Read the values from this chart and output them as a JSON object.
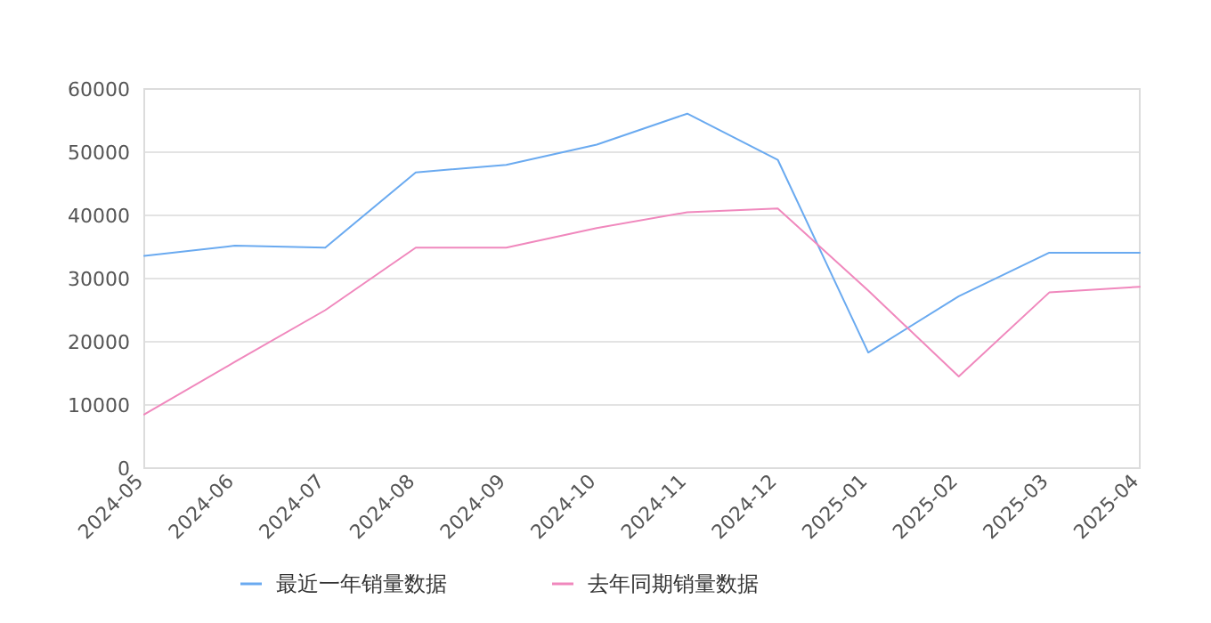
{
  "chart_data": {
    "type": "line",
    "categories": [
      "2024-05",
      "2024-06",
      "2024-07",
      "2024-08",
      "2024-09",
      "2024-10",
      "2024-11",
      "2024-12",
      "2025-01",
      "2025-02",
      "2025-03",
      "2025-04"
    ],
    "series": [
      {
        "name": "最近一年销量数据",
        "color": "#6aaaf0",
        "values": [
          33600,
          35200,
          34900,
          46800,
          48000,
          51200,
          56100,
          48800,
          18300,
          27200,
          34100,
          34100
        ]
      },
      {
        "name": "去年同期销量数据",
        "color": "#f088bd",
        "values": [
          8500,
          16800,
          25000,
          34900,
          34900,
          38000,
          40500,
          41100,
          28100,
          14500,
          27800,
          28700
        ]
      }
    ],
    "ylim": [
      0,
      60000
    ],
    "yticks": [
      0,
      10000,
      20000,
      30000,
      40000,
      50000,
      60000
    ],
    "grid": "y",
    "legend": "bottom",
    "marker": "none",
    "line_style": "solid"
  }
}
